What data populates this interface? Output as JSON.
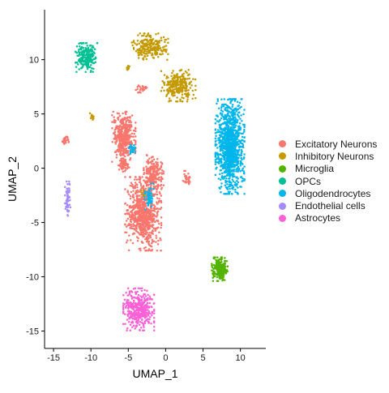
{
  "chart_data": {
    "type": "scatter",
    "title": "",
    "xlabel": "UMAP_1",
    "ylabel": "UMAP_2",
    "xlim": [
      -16.2,
      13.4
    ],
    "ylim": [
      -16.6,
      14.6
    ],
    "xticks": [
      -15,
      -10,
      -5,
      0,
      5,
      10
    ],
    "yticks": [
      -15,
      -10,
      -5,
      0,
      5,
      10
    ],
    "grid": false,
    "legend_position": "right",
    "series": [
      {
        "name": "Excitatory Neurons",
        "color": "#F8766D",
        "clusters": [
          {
            "center": [
              -5.6,
              2.9
            ],
            "spread": [
              1.3,
              1.9
            ],
            "points": 420
          },
          {
            "center": [
              -3.0,
              -4.2
            ],
            "spread": [
              2.0,
              2.8
            ],
            "points": 750
          },
          {
            "center": [
              -1.6,
              -0.6
            ],
            "spread": [
              1.1,
              1.5
            ],
            "points": 220
          },
          {
            "center": [
              -5.6,
              0.3
            ],
            "spread": [
              0.6,
              0.5
            ],
            "points": 70
          },
          {
            "center": [
              -13.4,
              2.6
            ],
            "spread": [
              0.35,
              0.3
            ],
            "points": 25
          },
          {
            "center": [
              -3.3,
              7.3
            ],
            "spread": [
              0.8,
              0.3
            ],
            "points": 25
          },
          {
            "center": [
              2.8,
              -0.9
            ],
            "spread": [
              0.4,
              0.6
            ],
            "points": 30
          }
        ]
      },
      {
        "name": "Inhibitory Neurons",
        "color": "#C49A00",
        "clusters": [
          {
            "center": [
              -2.1,
              11.2
            ],
            "spread": [
              2.0,
              1.0
            ],
            "points": 230
          },
          {
            "center": [
              1.7,
              7.6
            ],
            "spread": [
              1.9,
              1.2
            ],
            "points": 260
          },
          {
            "center": [
              -9.8,
              4.7
            ],
            "spread": [
              0.3,
              0.3
            ],
            "points": 15
          },
          {
            "center": [
              -5.0,
              9.3
            ],
            "spread": [
              0.3,
              0.3
            ],
            "points": 10
          },
          {
            "center": [
              -3.0,
              -2.3
            ],
            "spread": [
              0.3,
              0.3
            ],
            "points": 10
          }
        ]
      },
      {
        "name": "Microglia",
        "color": "#53B400",
        "clusters": [
          {
            "center": [
              7.2,
              -9.3
            ],
            "spread": [
              0.9,
              0.9
            ],
            "points": 240
          }
        ]
      },
      {
        "name": "OPCs",
        "color": "#00C094",
        "clusters": [
          {
            "center": [
              -10.6,
              10.2
            ],
            "spread": [
              1.2,
              1.1
            ],
            "points": 220
          }
        ]
      },
      {
        "name": "Oligodendrocytes",
        "color": "#00B6EB",
        "clusters": [
          {
            "center": [
              8.6,
              2.0
            ],
            "spread": [
              1.6,
              3.6
            ],
            "points": 1100
          },
          {
            "center": [
              -2.2,
              -2.6
            ],
            "spread": [
              0.5,
              1.0
            ],
            "points": 60
          },
          {
            "center": [
              -4.5,
              1.8
            ],
            "spread": [
              0.4,
              0.4
            ],
            "points": 30
          }
        ]
      },
      {
        "name": "Endothelial cells",
        "color": "#A58AFF",
        "clusters": [
          {
            "center": [
              -13.1,
              -2.8
            ],
            "spread": [
              0.3,
              1.3
            ],
            "points": 60
          }
        ]
      },
      {
        "name": "Astrocytes",
        "color": "#FB61D7",
        "clusters": [
          {
            "center": [
              -3.6,
              -13.0
            ],
            "spread": [
              1.7,
              1.6
            ],
            "points": 420
          }
        ]
      }
    ]
  }
}
